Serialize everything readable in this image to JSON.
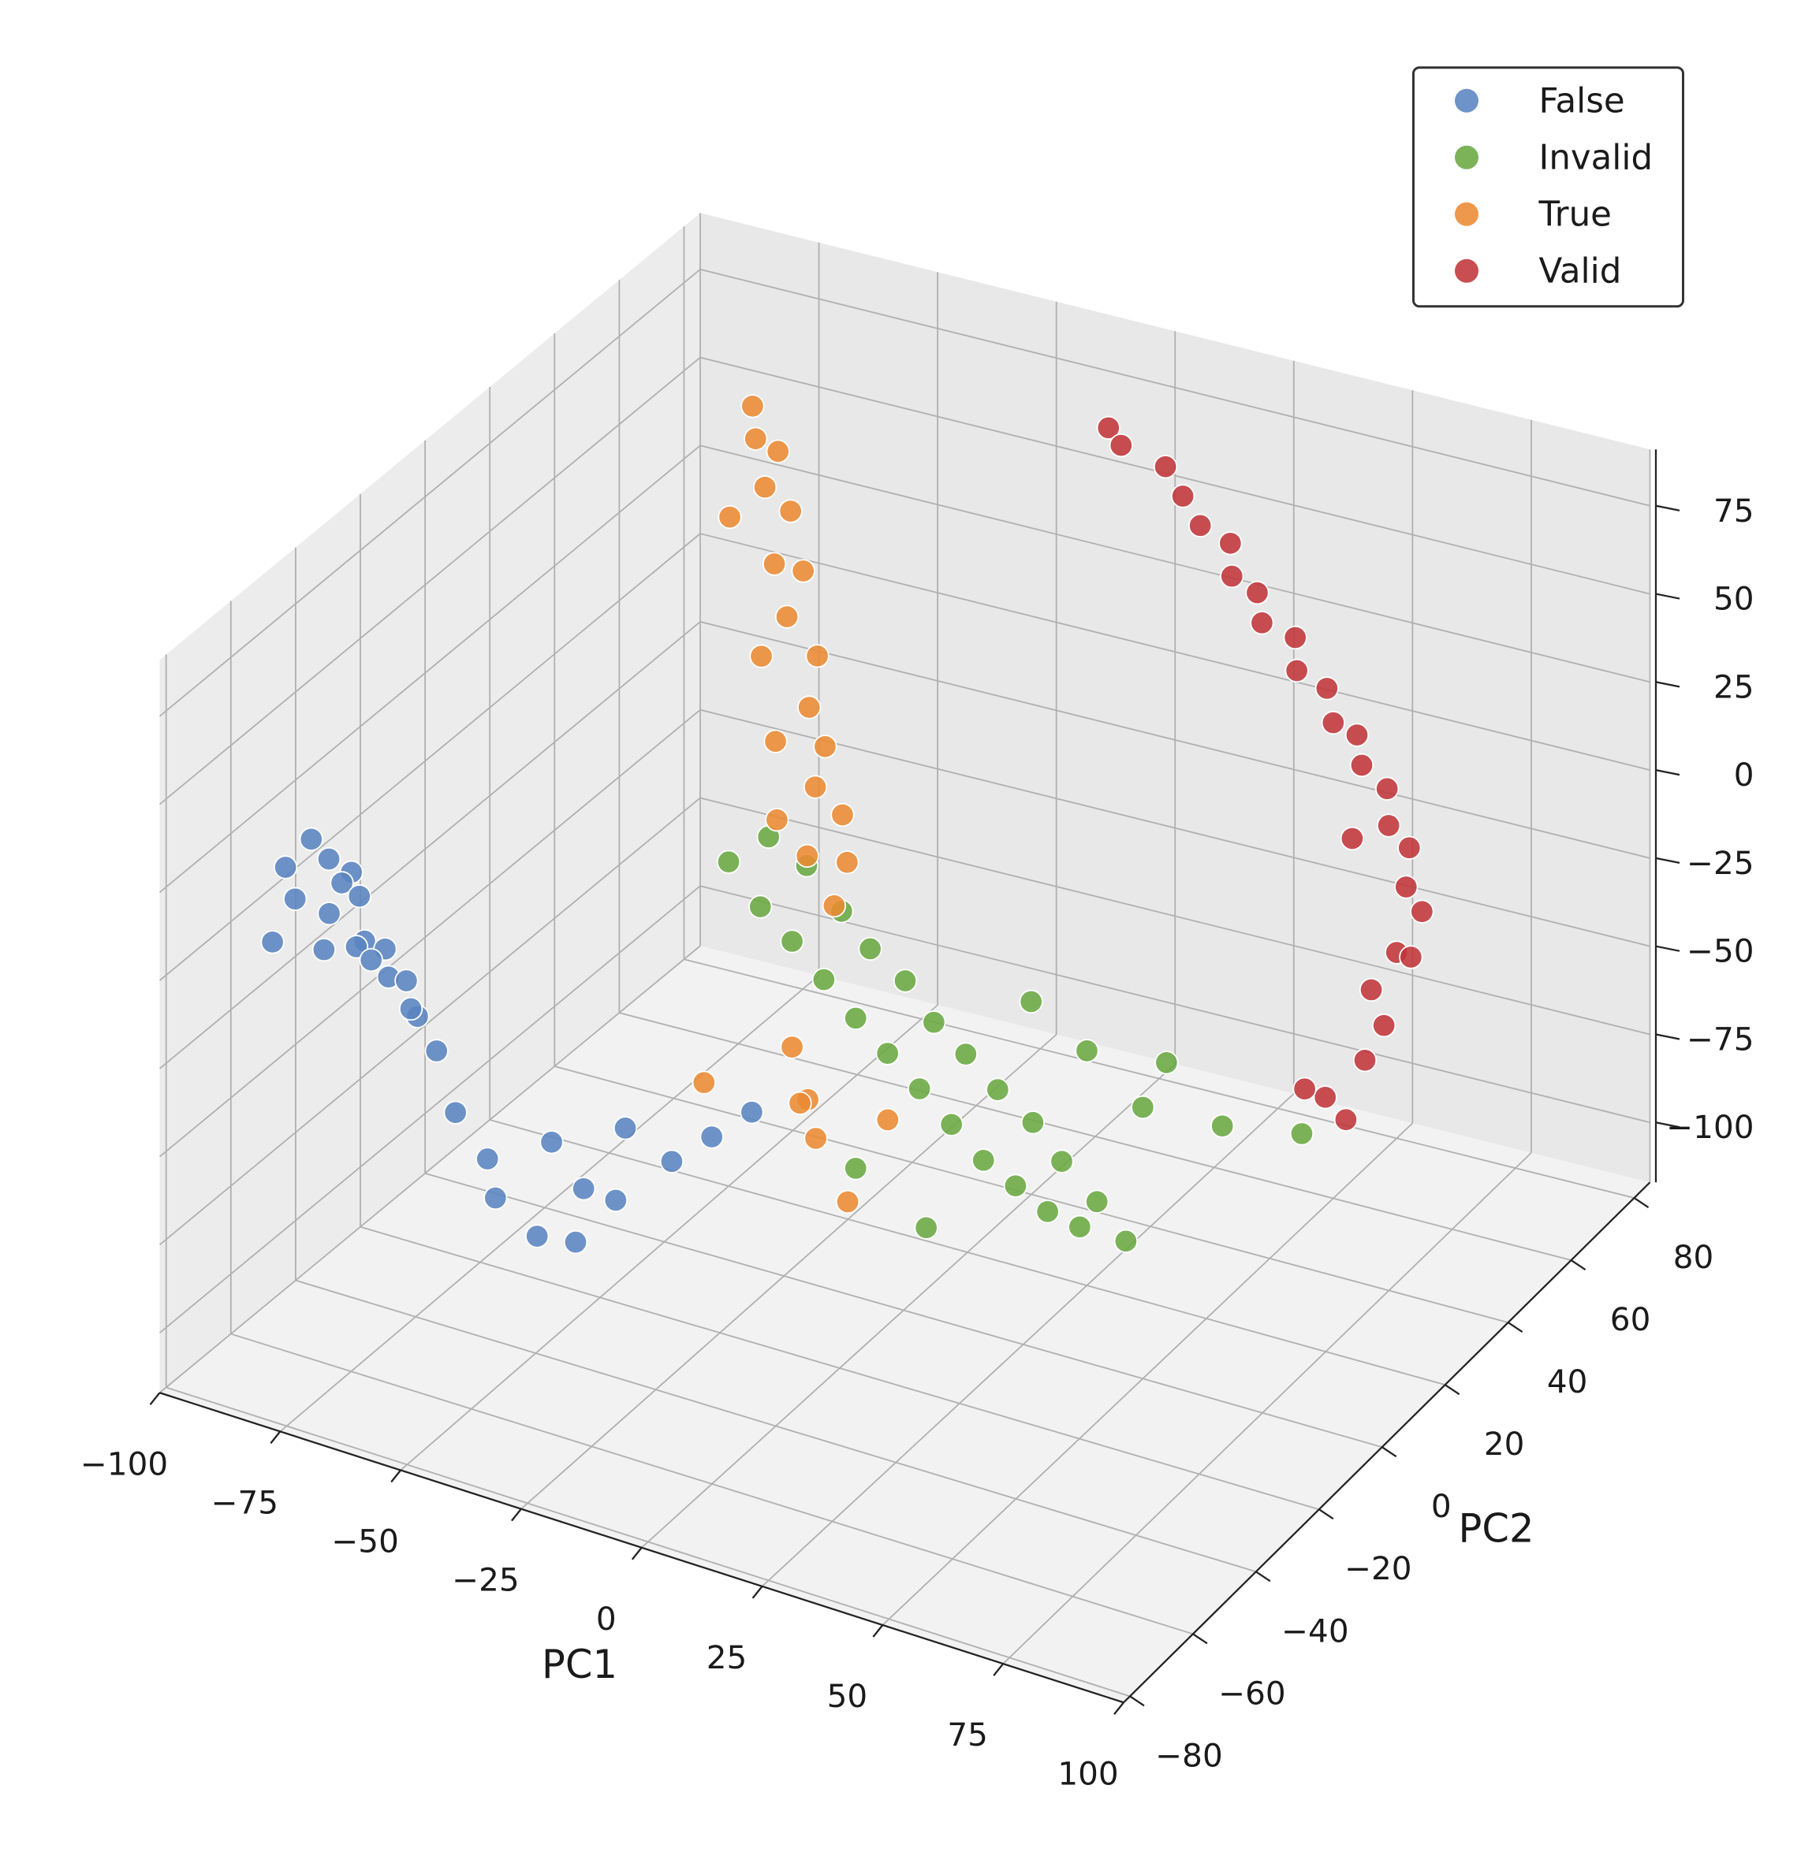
{
  "chart_data": {
    "type": "scatter3d",
    "xlabel": "PC1",
    "ylabel": "PC2",
    "xlim": [
      -100,
      100
    ],
    "ylim": [
      -82,
      85
    ],
    "zlim": [
      -117,
      91
    ],
    "xticks": [
      {
        "value": -100,
        "label": "−100"
      },
      {
        "value": -75,
        "label": "−75"
      },
      {
        "value": -50,
        "label": "−50"
      },
      {
        "value": -25,
        "label": "−25"
      },
      0,
      25,
      50,
      75,
      100
    ],
    "yticks": [
      {
        "value": -80,
        "label": "−80"
      },
      {
        "value": -60,
        "label": "−60"
      },
      {
        "value": -40,
        "label": "−40"
      },
      {
        "value": -20,
        "label": "−20"
      },
      0,
      20,
      40,
      60,
      80
    ],
    "zticks": [
      {
        "value": -100,
        "label": "−100"
      },
      {
        "value": -75,
        "label": "−75"
      },
      {
        "value": -50,
        "label": "−50"
      },
      {
        "value": -25,
        "label": "−25"
      },
      0,
      25,
      50,
      75
    ],
    "grid": true,
    "legend_position": "upper right",
    "series": [
      {
        "name": "False",
        "color": "#5a84c0",
        "x": [
          -92,
          -90,
          -88,
          -85,
          -83,
          -90,
          -87,
          -84,
          -80,
          -93,
          -89,
          -86,
          -82,
          -78,
          -91,
          -85,
          -80,
          -76,
          -74,
          -60,
          -50,
          -45,
          -40,
          -35,
          -30,
          -25,
          -20,
          -15,
          -10,
          -5,
          -28
        ],
        "y": [
          -55,
          -50,
          -58,
          -52,
          -48,
          -62,
          -45,
          -55,
          -50,
          -40,
          -35,
          -42,
          -38,
          -45,
          -30,
          -28,
          -32,
          -40,
          -35,
          -50,
          -55,
          -60,
          -50,
          -62,
          -55,
          -65,
          -60,
          -50,
          -45,
          -40,
          -45
        ],
        "z": [
          15,
          20,
          10,
          18,
          12,
          0,
          5,
          -5,
          8,
          -10,
          -20,
          -15,
          -25,
          -10,
          -30,
          -35,
          -40,
          -30,
          -45,
          -45,
          -50,
          -55,
          -45,
          -60,
          -50,
          -55,
          -45,
          -40,
          -35,
          -30,
          -40
        ]
      },
      {
        "name": "Invalid",
        "color": "#6aa842",
        "x": [
          -50,
          -45,
          -40,
          -35,
          -30,
          -25,
          -20,
          -15,
          -10,
          -5,
          0,
          5,
          10,
          15,
          20,
          25,
          30,
          35,
          40,
          45,
          50,
          55,
          60,
          65,
          70,
          20,
          35,
          50,
          10,
          30,
          60,
          45
        ],
        "y": [
          20,
          25,
          15,
          22,
          10,
          18,
          5,
          12,
          0,
          8,
          -5,
          2,
          -10,
          -3,
          -15,
          -8,
          -20,
          -12,
          -25,
          -18,
          -30,
          -22,
          -35,
          -28,
          20,
          10,
          5,
          0,
          -30,
          -38,
          10,
          15
        ],
        "z": [
          -25,
          -20,
          -30,
          -22,
          -32,
          -28,
          -35,
          -30,
          -38,
          -32,
          -40,
          -35,
          -42,
          -36,
          -44,
          -38,
          -46,
          -40,
          -45,
          -42,
          -44,
          -46,
          -40,
          -48,
          -57,
          -30,
          -34,
          -40,
          -48,
          -50,
          -50,
          -42
        ]
      },
      {
        "name": "True",
        "color": "#ea8a32",
        "x": [
          -72,
          -70,
          -68,
          -66,
          -70,
          -64,
          -62,
          -60,
          -58,
          -60,
          -55,
          -52,
          -55,
          -50,
          -48,
          -52,
          -45,
          -47,
          -42,
          -40,
          -30,
          -20,
          -25,
          -15,
          -10,
          -5,
          -35
        ],
        "y": [
          60,
          58,
          62,
          55,
          50,
          60,
          52,
          58,
          50,
          45,
          55,
          48,
          42,
          50,
          44,
          38,
          48,
          40,
          45,
          38,
          10,
          0,
          5,
          -5,
          10,
          -10,
          -10
        ],
        "z": [
          65,
          58,
          52,
          48,
          42,
          38,
          30,
          24,
          18,
          10,
          4,
          -4,
          -10,
          -16,
          -22,
          -28,
          -32,
          -38,
          -42,
          -48,
          -62,
          -65,
          -72,
          -70,
          -75,
          -80,
          -58
        ]
      },
      {
        "name": "Valid",
        "color": "#c0353a",
        "x": [
          -12,
          -8,
          0,
          5,
          10,
          15,
          18,
          22,
          25,
          30,
          33,
          38,
          42,
          45,
          48,
          52,
          55,
          58,
          60,
          62,
          60,
          58,
          62,
          60,
          55,
          58,
          52,
          65,
          50
        ],
        "y": [
          82,
          80,
          82,
          80,
          78,
          80,
          76,
          78,
          75,
          78,
          74,
          76,
          72,
          75,
          72,
          74,
          70,
          72,
          68,
          70,
          65,
          60,
          58,
          55,
          50,
          52,
          48,
          62,
          66
        ],
        "z": [
          62,
          60,
          55,
          50,
          45,
          40,
          35,
          30,
          25,
          20,
          15,
          10,
          5,
          0,
          -5,
          -12,
          -18,
          -25,
          -32,
          -40,
          -48,
          -55,
          -62,
          -70,
          -78,
          -85,
          -75,
          -45,
          -20
        ]
      }
    ]
  }
}
